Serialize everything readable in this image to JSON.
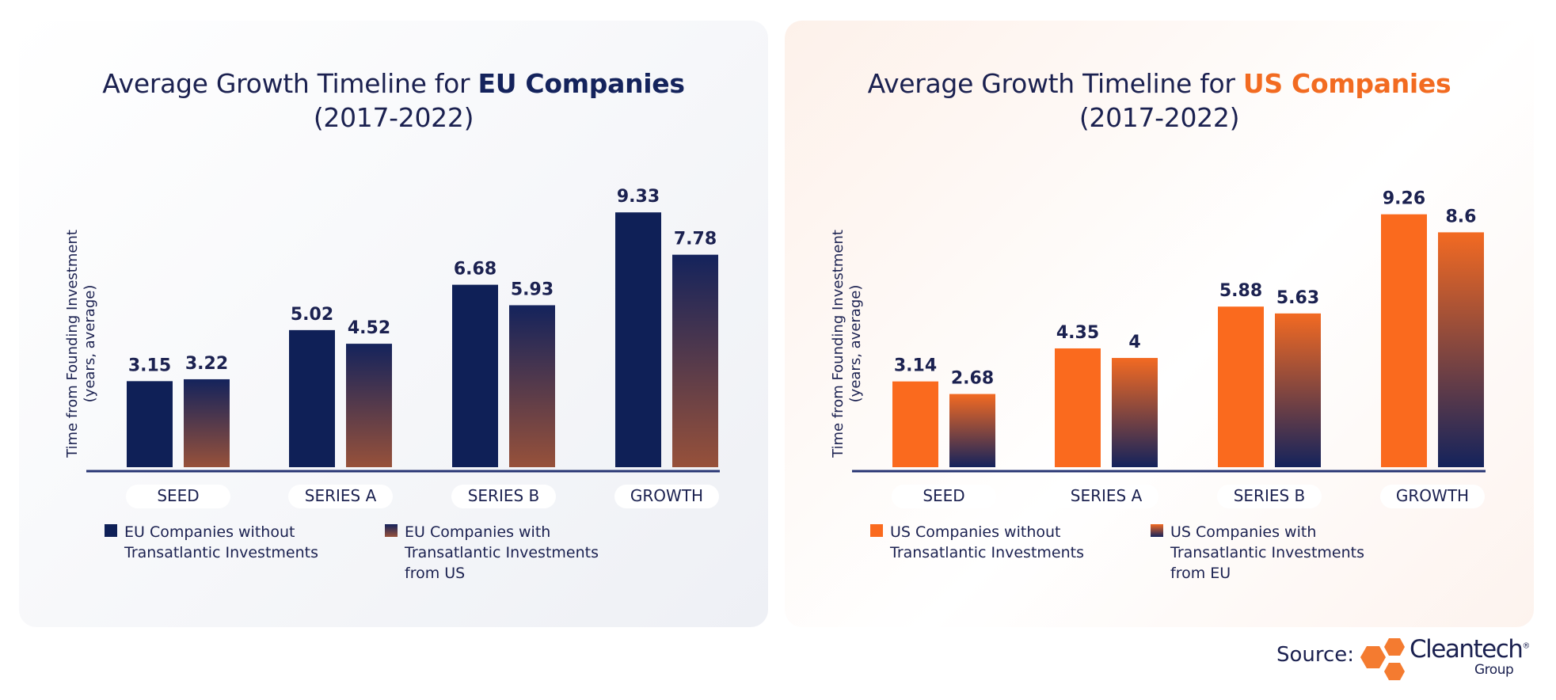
{
  "chart_data": [
    {
      "type": "bar",
      "title_prefix": "Average Growth Timeline for ",
      "title_highlight": "EU Companies",
      "subtitle": "(2017-2022)",
      "ylabel": [
        "Time from Founding Investment",
        "(years, average)"
      ],
      "categories": [
        "SEED",
        "SERIES A",
        "SERIES B",
        "GROWTH"
      ],
      "series": [
        {
          "name": "EU Companies without Transatlantic Investments",
          "values": [
            3.15,
            5.02,
            6.68,
            9.33
          ]
        },
        {
          "name": "EU Companies with Transatlantic Investments from US",
          "values": [
            3.22,
            4.52,
            5.93,
            7.78
          ]
        }
      ],
      "ylim": [
        0,
        9.8
      ],
      "colors": {
        "solid": "#0f2057",
        "gradient_top": "#14235c",
        "gradient_bottom": "#97513a",
        "highlight": "#14235c"
      }
    },
    {
      "type": "bar",
      "title_prefix": "Average Growth Timeline for ",
      "title_highlight": "US Companies",
      "subtitle": "(2017-2022)",
      "ylabel": [
        "Time from Founding Investment",
        "(years, average)"
      ],
      "categories": [
        "SEED",
        "SERIES A",
        "SERIES B",
        "GROWTH"
      ],
      "series": [
        {
          "name": "US Companies without Transatlantic Investments",
          "values": [
            3.14,
            4.35,
            5.88,
            9.26
          ]
        },
        {
          "name": "US Companies with Transatlantic Investments from EU",
          "values": [
            2.68,
            4,
            5.63,
            8.6
          ]
        }
      ],
      "ylim": [
        0,
        9.8
      ],
      "colors": {
        "solid": "#fa6a1e",
        "gradient_top": "#f36a22",
        "gradient_bottom": "#14235c",
        "highlight": "#f26b21"
      }
    }
  ],
  "footer": {
    "source_label": "Source:",
    "brand_name": "Cleantech",
    "brand_registered": "®",
    "brand_sub": "Group",
    "brand_color": "#f47b30"
  }
}
